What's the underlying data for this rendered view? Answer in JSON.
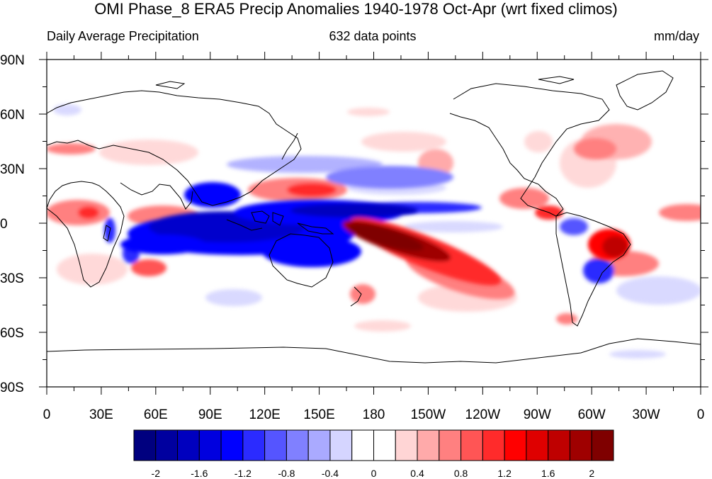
{
  "title": "OMI Phase_8 ERA5 Precip Anomalies 1940-1978 Oct-Apr (wrt fixed climos)",
  "subtitle_left": "Daily Average Precipitation",
  "subtitle_center": "632 data points",
  "subtitle_right": "mm/day",
  "map": {
    "lat_labels": [
      "90N",
      "60N",
      "30N",
      "0",
      "30S",
      "60S",
      "90S"
    ],
    "lon_labels": [
      "0",
      "30E",
      "60E",
      "90E",
      "120E",
      "150E",
      "180",
      "150W",
      "120W",
      "90W",
      "60W",
      "30W",
      "0"
    ]
  },
  "colorbar": {
    "colors": [
      "#00007f",
      "#00009f",
      "#0000bf",
      "#0000df",
      "#0000ff",
      "#2b2bff",
      "#5555ff",
      "#8080ff",
      "#aaaaff",
      "#d5d5ff",
      "#ffffff",
      "#ffffff",
      "#ffd5d5",
      "#ffaaaa",
      "#ff8080",
      "#ff5555",
      "#ff2b2b",
      "#ff0000",
      "#df0000",
      "#bf0000",
      "#9f0000",
      "#7f0000"
    ],
    "tick_labels": [
      "-2",
      "-1.6",
      "-1.2",
      "-0.8",
      "-0.4",
      "0",
      "0.4",
      "0.8",
      "1.2",
      "1.6",
      "2"
    ]
  },
  "colors": {
    "strong_negative": "#0000cc",
    "strong_positive": "#8b0000"
  }
}
